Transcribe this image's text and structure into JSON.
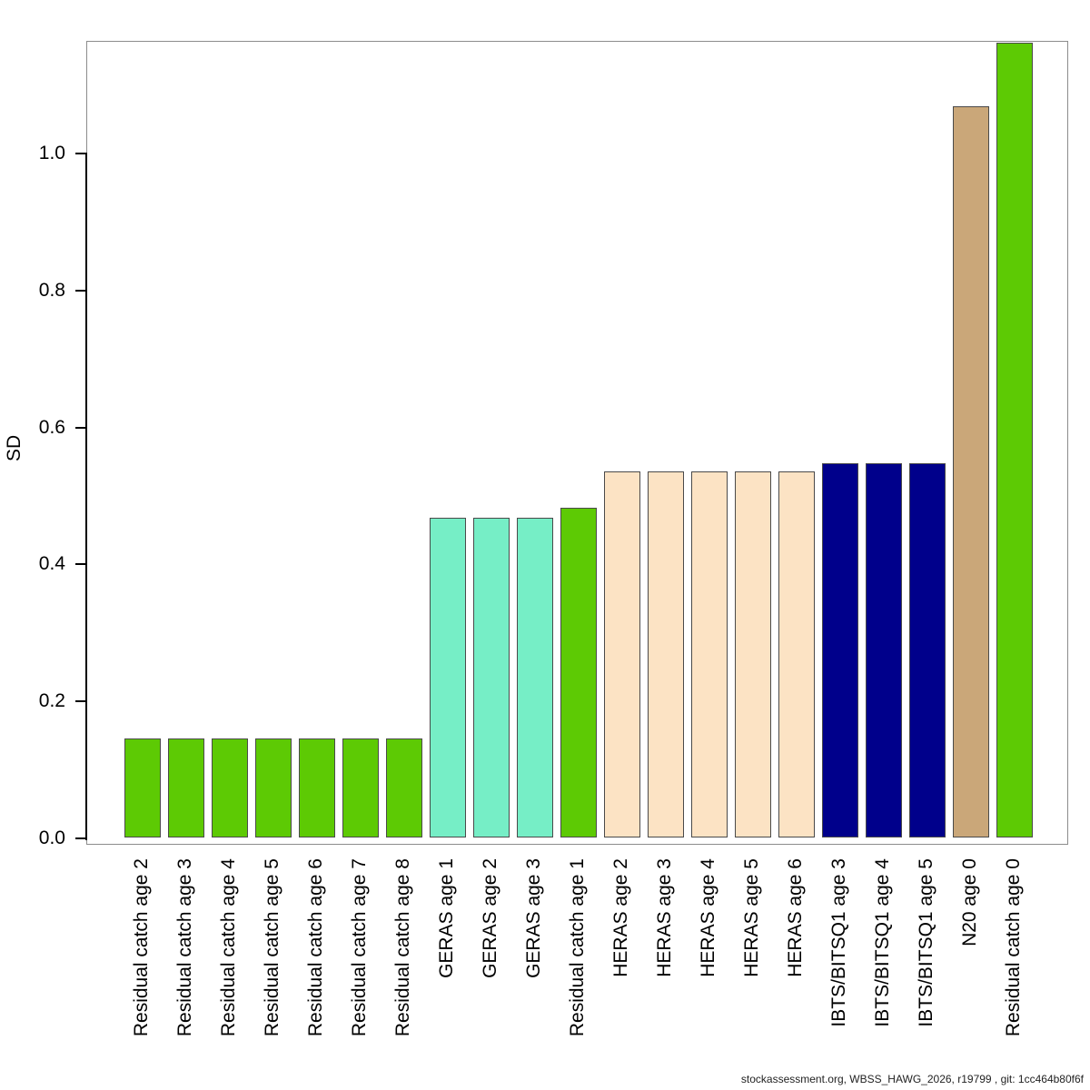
{
  "chart_data": {
    "type": "bar",
    "title": "",
    "xlabel": "",
    "ylabel": "SD",
    "ylim": [
      0,
      1.163
    ],
    "grid": false,
    "legend": "none",
    "ytick_labels": [
      "0.0",
      "0.2",
      "0.4",
      "0.6",
      "0.8",
      "1.0"
    ],
    "bar_colors_legend": {
      "residual_catch": "#5DCA04",
      "geras": "#76EEC6",
      "heras": "#FCE3C4",
      "ibts_bitsq1": "#00008B",
      "n20": "#CAA779"
    },
    "bars": [
      {
        "label": "Residual catch age 2",
        "value": 0.144,
        "color": "#5DCA04"
      },
      {
        "label": "Residual catch age 3",
        "value": 0.144,
        "color": "#5DCA04"
      },
      {
        "label": "Residual catch age 4",
        "value": 0.144,
        "color": "#5DCA04"
      },
      {
        "label": "Residual catch age 5",
        "value": 0.144,
        "color": "#5DCA04"
      },
      {
        "label": "Residual catch age 6",
        "value": 0.144,
        "color": "#5DCA04"
      },
      {
        "label": "Residual catch age 7",
        "value": 0.144,
        "color": "#5DCA04"
      },
      {
        "label": "Residual catch age 8",
        "value": 0.144,
        "color": "#5DCA04"
      },
      {
        "label": "GERAS age 1",
        "value": 0.467,
        "color": "#76EEC6"
      },
      {
        "label": "GERAS age 2",
        "value": 0.467,
        "color": "#76EEC6"
      },
      {
        "label": "GERAS age 3",
        "value": 0.467,
        "color": "#76EEC6"
      },
      {
        "label": "Residual catch age 1",
        "value": 0.481,
        "color": "#5DCA04"
      },
      {
        "label": "HERAS age 2",
        "value": 0.535,
        "color": "#FCE3C4"
      },
      {
        "label": "HERAS age 3",
        "value": 0.535,
        "color": "#FCE3C4"
      },
      {
        "label": "HERAS age 4",
        "value": 0.535,
        "color": "#FCE3C4"
      },
      {
        "label": "HERAS age 5",
        "value": 0.535,
        "color": "#FCE3C4"
      },
      {
        "label": "HERAS age 6",
        "value": 0.535,
        "color": "#FCE3C4"
      },
      {
        "label": "IBTS/BITSQ1 age 3",
        "value": 0.546,
        "color": "#00008B"
      },
      {
        "label": "IBTS/BITSQ1 age 4",
        "value": 0.546,
        "color": "#00008B"
      },
      {
        "label": "IBTS/BITSQ1 age 5",
        "value": 0.546,
        "color": "#00008B"
      },
      {
        "label": "N20 age 0",
        "value": 1.068,
        "color": "#CAA779"
      },
      {
        "label": "Residual catch age 0",
        "value": 1.16,
        "color": "#5DCA04"
      }
    ]
  },
  "footer": {
    "text": "stockassessment.org, WBSS_HAWG_2026, r19799 , git: 1cc464b80f6f"
  }
}
